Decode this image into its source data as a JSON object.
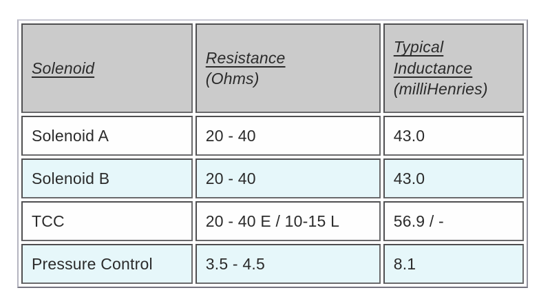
{
  "table": {
    "name": "solenoid-specifications-table",
    "headers": [
      {
        "underlined": "Solenoid",
        "rest": ""
      },
      {
        "underlined": "Resistance",
        "rest": "(Ohms)"
      },
      {
        "underlined": "Typical Inductance",
        "rest": "(milliHenries)"
      }
    ],
    "rows": [
      {
        "cells": [
          "Solenoid A",
          "20 - 40",
          "43.0"
        ]
      },
      {
        "cells": [
          "Solenoid B",
          "20 - 40",
          "43.0"
        ]
      },
      {
        "cells": [
          "TCC",
          "20 - 40 E / 10-15 L",
          "56.9 / -"
        ]
      },
      {
        "cells": [
          "Pressure Control",
          "3.5 - 4.5",
          "8.1"
        ]
      }
    ],
    "colors": {
      "header_bg": "#cbcbcb",
      "row_bg": "#fefefe",
      "row_alt_bg": "#e6f7fa",
      "cell_border": "#4e4e50",
      "outer_border": "#9f9fab",
      "text": "#2b2b2b"
    }
  }
}
